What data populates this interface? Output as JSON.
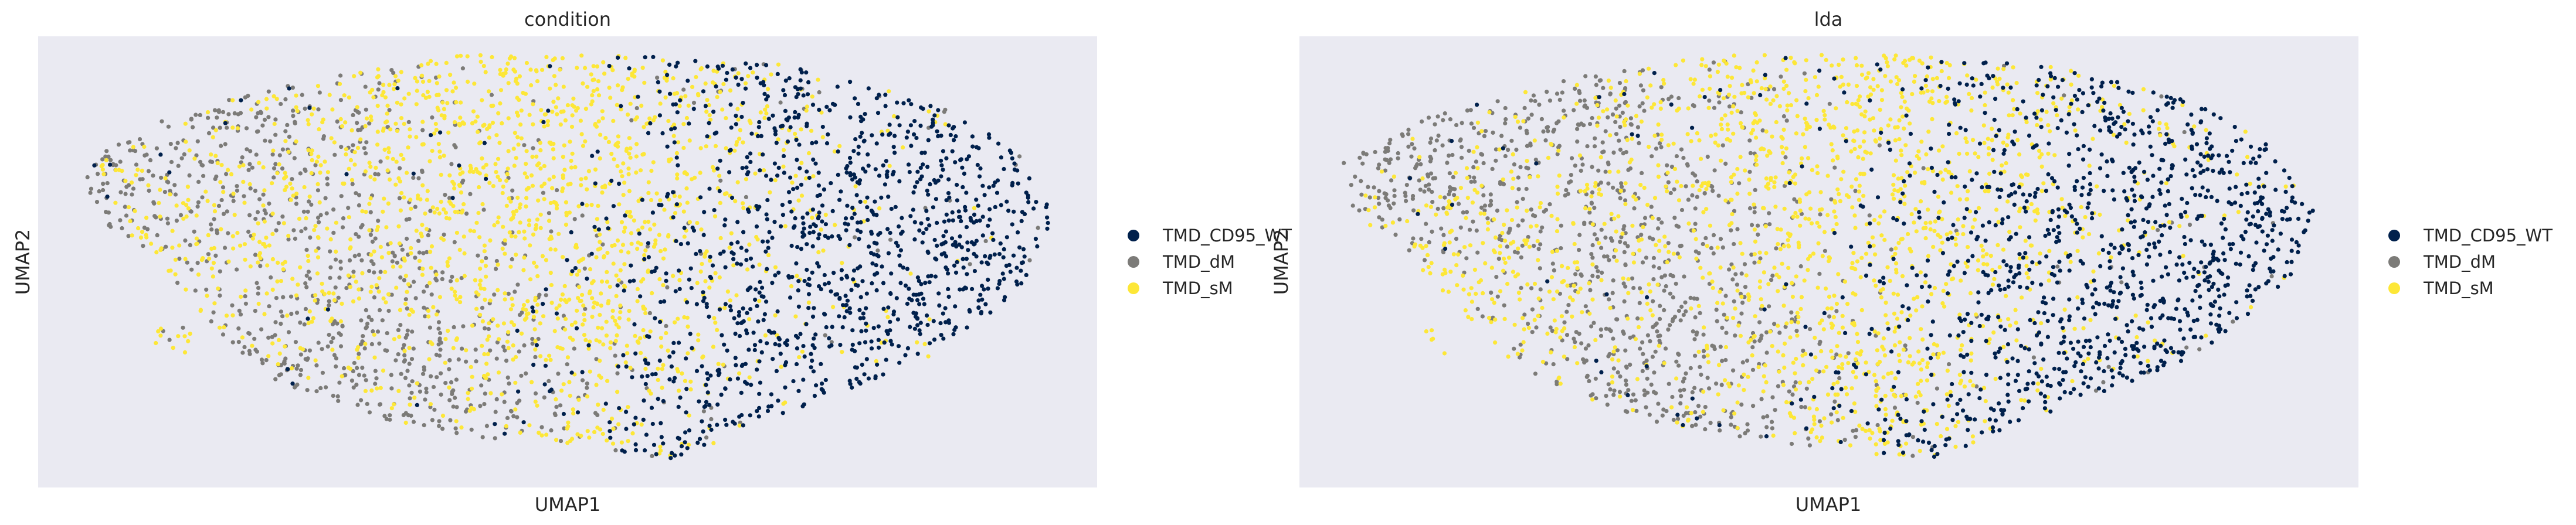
{
  "chart_data": [
    {
      "type": "scatter",
      "title": "condition",
      "xlabel": "UMAP1",
      "ylabel": "UMAP2",
      "xlim": [
        0,
        1
      ],
      "ylim": [
        0,
        1
      ],
      "grid": false,
      "legend_placement": "right",
      "categories": [
        "TMD_CD95_WT",
        "TMD_dM",
        "TMD_sM"
      ],
      "colors": [
        "#00204c",
        "#7c7b78",
        "#fde737"
      ],
      "cloud": {
        "outline": [
          [
            0.04,
            0.72
          ],
          [
            0.13,
            0.83
          ],
          [
            0.26,
            0.91
          ],
          [
            0.4,
            0.96
          ],
          [
            0.55,
            0.96
          ],
          [
            0.7,
            0.94
          ],
          [
            0.84,
            0.86
          ],
          [
            0.93,
            0.74
          ],
          [
            0.96,
            0.6
          ],
          [
            0.93,
            0.44
          ],
          [
            0.84,
            0.28
          ],
          [
            0.7,
            0.16
          ],
          [
            0.6,
            0.06
          ],
          [
            0.48,
            0.09
          ],
          [
            0.34,
            0.14
          ],
          [
            0.22,
            0.24
          ],
          [
            0.16,
            0.37
          ],
          [
            0.1,
            0.52
          ],
          [
            0.05,
            0.61
          ]
        ],
        "islands": [
          {
            "center": [
              0.13,
              0.33
            ],
            "radius": [
              0.02,
              0.035
            ]
          }
        ],
        "regions": [
          {
            "category": "TMD_dM",
            "center": [
              0.13,
              0.72
            ],
            "spread": [
              0.1,
              0.12
            ]
          },
          {
            "category": "TMD_dM",
            "center": [
              0.3,
              0.4
            ],
            "spread": [
              0.1,
              0.2
            ]
          },
          {
            "category": "TMD_sM",
            "center": [
              0.48,
              0.62
            ],
            "spread": [
              0.13,
              0.22
            ]
          },
          {
            "category": "TMD_sM",
            "center": [
              0.22,
              0.55
            ],
            "spread": [
              0.08,
              0.15
            ]
          },
          {
            "category": "TMD_CD95_WT",
            "center": [
              0.78,
              0.5
            ],
            "spread": [
              0.12,
              0.25
            ]
          }
        ],
        "n_points": 3600
      }
    },
    {
      "type": "scatter",
      "title": "lda",
      "xlabel": "UMAP1",
      "ylabel": "UMAP2",
      "xlim": [
        0,
        1
      ],
      "ylim": [
        0,
        1
      ],
      "grid": false,
      "legend_placement": "right",
      "categories": [
        "TMD_CD95_WT",
        "TMD_dM",
        "TMD_sM"
      ],
      "colors": [
        "#00204c",
        "#7c7b78",
        "#fde737"
      ],
      "cloud": {
        "outline": [
          [
            0.04,
            0.72
          ],
          [
            0.13,
            0.83
          ],
          [
            0.26,
            0.91
          ],
          [
            0.4,
            0.96
          ],
          [
            0.55,
            0.96
          ],
          [
            0.7,
            0.94
          ],
          [
            0.84,
            0.86
          ],
          [
            0.93,
            0.74
          ],
          [
            0.96,
            0.6
          ],
          [
            0.93,
            0.44
          ],
          [
            0.84,
            0.28
          ],
          [
            0.7,
            0.16
          ],
          [
            0.6,
            0.06
          ],
          [
            0.48,
            0.09
          ],
          [
            0.34,
            0.14
          ],
          [
            0.22,
            0.24
          ],
          [
            0.16,
            0.37
          ],
          [
            0.1,
            0.52
          ],
          [
            0.05,
            0.61
          ]
        ],
        "islands": [
          {
            "center": [
              0.13,
              0.33
            ],
            "radius": [
              0.02,
              0.035
            ]
          }
        ],
        "regions": [
          {
            "category": "TMD_dM",
            "center": [
              0.13,
              0.72
            ],
            "spread": [
              0.1,
              0.12
            ]
          },
          {
            "category": "TMD_dM",
            "center": [
              0.32,
              0.45
            ],
            "spread": [
              0.09,
              0.2
            ]
          },
          {
            "category": "TMD_sM",
            "center": [
              0.52,
              0.6
            ],
            "spread": [
              0.14,
              0.22
            ]
          },
          {
            "category": "TMD_sM",
            "center": [
              0.2,
              0.5
            ],
            "spread": [
              0.07,
              0.15
            ]
          },
          {
            "category": "TMD_CD95_WT",
            "center": [
              0.78,
              0.5
            ],
            "spread": [
              0.12,
              0.25
            ]
          }
        ],
        "n_points": 3600
      }
    }
  ]
}
